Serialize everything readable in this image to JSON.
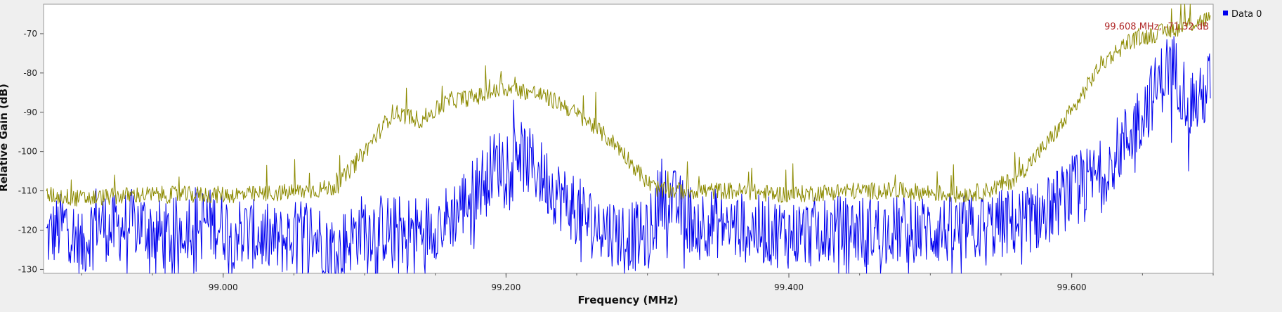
{
  "chart_data": {
    "type": "line",
    "xlabel": "Frequency (MHz)",
    "ylabel": "Relative Gain (dB)",
    "xlim": [
      98.873,
      99.7
    ],
    "ylim": [
      -131,
      -62.5
    ],
    "x_ticks": [
      99.0,
      99.2,
      99.4,
      99.6
    ],
    "x_tick_labels": [
      "99.000",
      "99.200",
      "99.400",
      "99.600"
    ],
    "y_ticks": [
      -70,
      -80,
      -90,
      -100,
      -110,
      -120,
      -130
    ],
    "y_tick_labels": [
      "-70",
      "-80",
      "-90",
      "-100",
      "-110",
      "-120",
      "-130"
    ],
    "grid": false,
    "legend_position": "top-right",
    "legend": [
      "Data 0"
    ],
    "marker_label": "99.608 MHz, -71.32 dB",
    "series": [
      {
        "name": "Data 0",
        "color": "#0000ee",
        "x": [
          98.875,
          98.89,
          98.9,
          98.91,
          98.92,
          98.94,
          98.96,
          98.98,
          99.0,
          99.02,
          99.04,
          99.06,
          99.08,
          99.1,
          99.12,
          99.14,
          99.16,
          99.17,
          99.18,
          99.19,
          99.2,
          99.205,
          99.21,
          99.22,
          99.24,
          99.26,
          99.28,
          99.3,
          99.305,
          99.31,
          99.33,
          99.36,
          99.4,
          99.44,
          99.48,
          99.52,
          99.56,
          99.58,
          99.6,
          99.62,
          99.64,
          99.65,
          99.66,
          99.67,
          99.68,
          99.69,
          99.698
        ],
        "values": [
          -122,
          -118,
          -125,
          -117,
          -120,
          -118,
          -122,
          -117,
          -119,
          -121,
          -123,
          -120,
          -125,
          -119,
          -120,
          -120,
          -117,
          -113,
          -109,
          -104,
          -102,
          -93,
          -101,
          -104,
          -112,
          -118,
          -121,
          -122,
          -116,
          -110,
          -117,
          -119,
          -121,
          -120,
          -120,
          -120,
          -118,
          -116,
          -110,
          -106,
          -96,
          -90,
          -84,
          -77,
          -85,
          -88,
          -82
        ]
      },
      {
        "name": "",
        "color": "#8c8a00",
        "x": [
          98.875,
          98.9,
          98.94,
          98.98,
          99.02,
          99.06,
          99.08,
          99.1,
          99.12,
          99.14,
          99.16,
          99.18,
          99.2,
          99.22,
          99.24,
          99.26,
          99.28,
          99.3,
          99.31,
          99.32,
          99.36,
          99.4,
          99.44,
          99.48,
          99.52,
          99.54,
          99.56,
          99.58,
          99.6,
          99.62,
          99.64,
          99.66,
          99.68,
          99.698
        ],
        "values": [
          -111,
          -112,
          -111,
          -111,
          -111,
          -110,
          -109,
          -100,
          -90,
          -92,
          -87,
          -86,
          -84,
          -85,
          -88,
          -93,
          -99,
          -108,
          -110,
          -110,
          -110,
          -111,
          -110,
          -110,
          -111,
          -110,
          -107,
          -99,
          -90,
          -78,
          -72,
          -70,
          -68,
          -66
        ]
      }
    ]
  }
}
